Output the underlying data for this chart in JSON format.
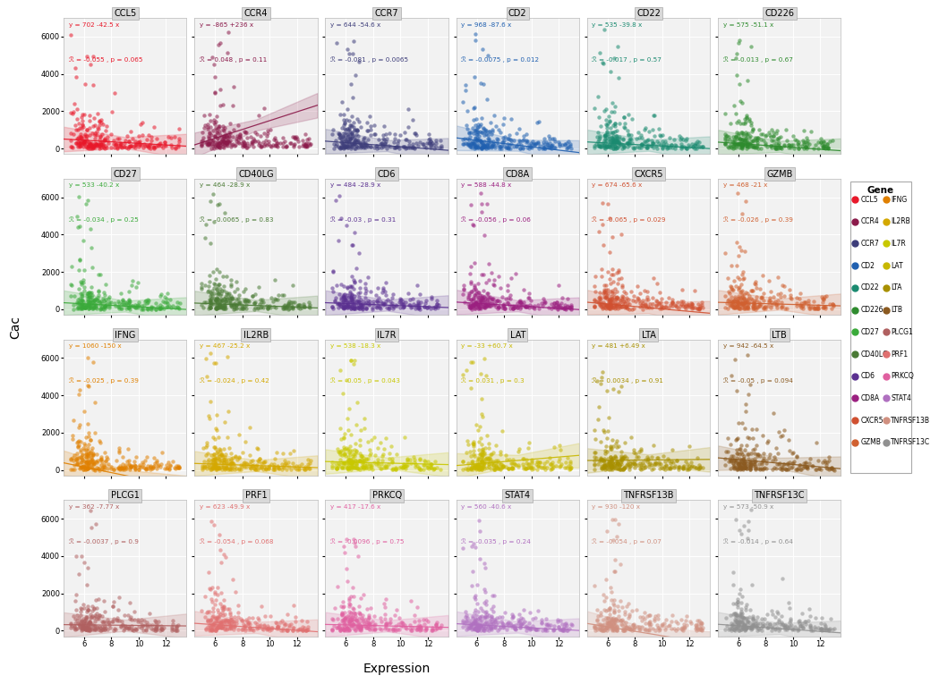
{
  "genes": [
    "CCL5",
    "CCR4",
    "CCR7",
    "CD2",
    "CD22",
    "CD226",
    "CD27",
    "CD40LG",
    "CD6",
    "CD8A",
    "CXCR5",
    "GZMB",
    "IFNG",
    "IL2RB",
    "IL7R",
    "LAT",
    "LTA",
    "LTB",
    "PLCG1",
    "PRF1",
    "PRKCQ",
    "STAT4",
    "TNFRSF13B",
    "TNFRSF13C"
  ],
  "colors": {
    "CCL5": "#E8182A",
    "CCR4": "#8B1A4A",
    "CCR7": "#3D3D7A",
    "CD2": "#2060B0",
    "CD22": "#1A8A70",
    "CD226": "#2E8B2E",
    "CD27": "#3AAA3A",
    "CD40LG": "#4A7A35",
    "CD6": "#5A3090",
    "CD8A": "#9B2080",
    "CXCR5": "#D05030",
    "GZMB": "#D06030",
    "IFNG": "#E08000",
    "IL2RB": "#D4A800",
    "IL7R": "#C8C800",
    "LAT": "#C8B800",
    "LTA": "#A89000",
    "LTB": "#8B5A20",
    "PLCG1": "#B06060",
    "PRF1": "#E07070",
    "PRKCQ": "#E060A0",
    "STAT4": "#B070C0",
    "TNFRSF13B": "#D09080",
    "TNFRSF13C": "#909090"
  },
  "equations": {
    "CCL5": {
      "a": 702,
      "b": -42.5,
      "bstr": "-42.5"
    },
    "CCR4": {
      "a": -865,
      "b": 236,
      "bstr": "+236"
    },
    "CCR7": {
      "a": 644,
      "b": -54.6,
      "bstr": "-54.6"
    },
    "CD2": {
      "a": 968,
      "b": -87.6,
      "bstr": "-87.6"
    },
    "CD22": {
      "a": 535,
      "b": -39.8,
      "bstr": "-39.8"
    },
    "CD226": {
      "a": 575,
      "b": -51.1,
      "bstr": "-51.1"
    },
    "CD27": {
      "a": 533,
      "b": -40.2,
      "bstr": "-40.2"
    },
    "CD40LG": {
      "a": 464,
      "b": -28.9,
      "bstr": "-28.9"
    },
    "CD6": {
      "a": 484,
      "b": -28.9,
      "bstr": "-28.9"
    },
    "CD8A": {
      "a": 588,
      "b": -44.8,
      "bstr": "-44.8"
    },
    "CXCR5": {
      "a": 674,
      "b": -65.6,
      "bstr": "-65.6"
    },
    "GZMB": {
      "a": 468,
      "b": -21,
      "bstr": "-21"
    },
    "IFNG": {
      "a": 1060,
      "b": -150,
      "bstr": "-150"
    },
    "IL2RB": {
      "a": 467,
      "b": -25.2,
      "bstr": "-25.2"
    },
    "IL7R": {
      "a": 538,
      "b": -18.3,
      "bstr": "-18.3"
    },
    "LAT": {
      "a": -33,
      "b": 60.7,
      "bstr": "+60.7"
    },
    "LTA": {
      "a": 481,
      "b": 6.49,
      "bstr": "+6.49"
    },
    "LTB": {
      "a": 942,
      "b": -64.5,
      "bstr": "-64.5"
    },
    "PLCG1": {
      "a": 362,
      "b": -7.77,
      "bstr": "-7.77"
    },
    "PRF1": {
      "a": 623,
      "b": -49.9,
      "bstr": "-49.9"
    },
    "PRKCQ": {
      "a": 417,
      "b": -17.6,
      "bstr": "-17.6"
    },
    "STAT4": {
      "a": 560,
      "b": -40.6,
      "bstr": "-40.6"
    },
    "TNFRSF13B": {
      "a": 930,
      "b": -120,
      "bstr": "-120"
    },
    "TNFRSF13C": {
      "a": 573,
      "b": -50.9,
      "bstr": "-50.9"
    }
  },
  "stats": {
    "CCL5": {
      "R": -0.055,
      "p": 0.065
    },
    "CCR4": {
      "R": 0.048,
      "p": 0.11
    },
    "CCR7": {
      "R": -0.081,
      "p": 0.0065
    },
    "CD2": {
      "R": -0.0075,
      "p": 0.012
    },
    "CD22": {
      "R": -0.017,
      "p": 0.57
    },
    "CD226": {
      "R": -0.013,
      "p": 0.67
    },
    "CD27": {
      "R": -0.034,
      "p": 0.25
    },
    "CD40LG": {
      "R": -0.0065,
      "p": 0.83
    },
    "CD6": {
      "R": -0.03,
      "p": 0.31
    },
    "CD8A": {
      "R": -0.056,
      "p": 0.06
    },
    "CXCR5": {
      "R": -0.065,
      "p": 0.029
    },
    "GZMB": {
      "R": -0.026,
      "p": 0.39
    },
    "IFNG": {
      "R": -0.025,
      "p": 0.39
    },
    "IL2RB": {
      "R": -0.024,
      "p": 0.42
    },
    "IL7R": {
      "R": -0.05,
      "p": 0.043
    },
    "LAT": {
      "R": 0.031,
      "p": 0.3
    },
    "LTA": {
      "R": 0.0034,
      "p": 0.91
    },
    "LTB": {
      "R": -0.05,
      "p": 0.094
    },
    "PLCG1": {
      "R": -0.0037,
      "p": 0.9
    },
    "PRF1": {
      "R": -0.054,
      "p": 0.068
    },
    "PRKCQ": {
      "R": -0.0096,
      "p": 0.75
    },
    "STAT4": {
      "R": -0.035,
      "p": 0.24
    },
    "TNFRSF13B": {
      "R": -0.054,
      "p": 0.07
    },
    "TNFRSF13C": {
      "R": -0.014,
      "p": 0.64
    }
  },
  "xlim": [
    4.5,
    13.5
  ],
  "ylim": [
    -300,
    7000
  ],
  "yticks": [
    0,
    2000,
    4000,
    6000
  ],
  "xticks": [
    6,
    8,
    10,
    12
  ],
  "n_rows": 4,
  "n_cols": 6,
  "figsize": [
    10.2,
    7.6
  ],
  "legend_genes_left": [
    "CCL5",
    "CCR4",
    "CCR7",
    "CD2",
    "CD22",
    "CD226",
    "CD27",
    "CD40LG",
    "CD6",
    "CD8A",
    "CXCR5",
    "GZMB"
  ],
  "legend_genes_right": [
    "IFNG",
    "IL2RB",
    "IL7R",
    "LAT",
    "LTA",
    "LTB",
    "PLCG1",
    "PRF1",
    "PRKCQ",
    "STAT4",
    "TNFRSF13B",
    "TNFRSF13C"
  ]
}
